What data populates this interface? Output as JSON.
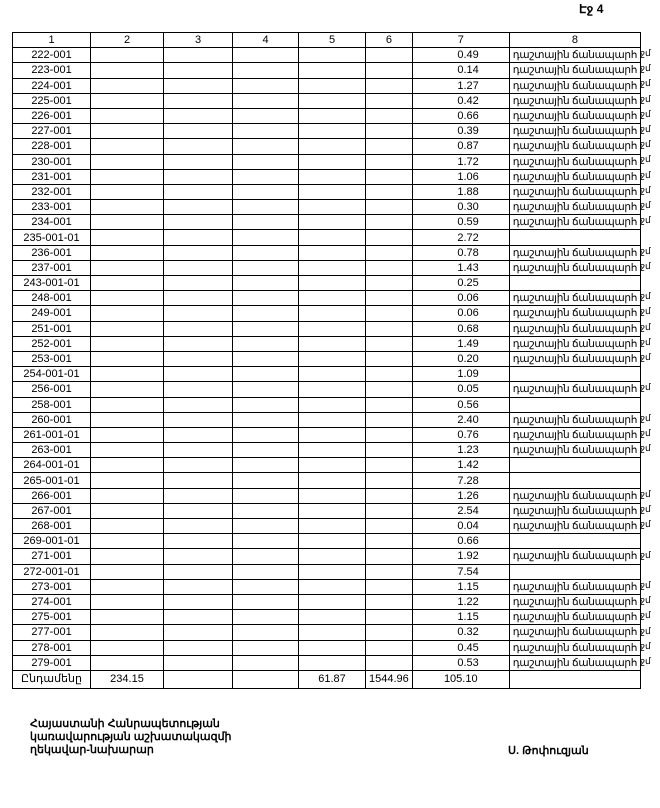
{
  "page_label": "Էջ 4",
  "headers": [
    "1",
    "2",
    "3",
    "4",
    "5",
    "6",
    "7",
    "8"
  ],
  "margin_mark": "ջմ",
  "rows": [
    [
      "222-001",
      "0.49",
      "դաշտային ճանապարհ"
    ],
    [
      "223-001",
      "0.14",
      "դաշտային ճանապարհ"
    ],
    [
      "224-001",
      "1.27",
      "դաշտային ճանապարհ"
    ],
    [
      "225-001",
      "0.42",
      "դաշտային ճանապարհ"
    ],
    [
      "226-001",
      "0.66",
      "դաշտային ճանապարհ"
    ],
    [
      "227-001",
      "0.39",
      "դաշտային ճանապարհ"
    ],
    [
      "228-001",
      "0.87",
      "դաշտային ճանապարհ"
    ],
    [
      "230-001",
      "1.72",
      "դաշտային ճանապարհ"
    ],
    [
      "231-001",
      "1.06",
      "դաշտային ճանապարհ"
    ],
    [
      "232-001",
      "1.88",
      "դաշտային ճանապարհ"
    ],
    [
      "233-001",
      "0.30",
      "դաշտային ճանապարհ"
    ],
    [
      "234-001",
      "0.59",
      "դաշտային ճանապարհ"
    ],
    [
      "235-001-01",
      "2.72",
      ""
    ],
    [
      "236-001",
      "0.78",
      "դաշտային ճանապարհ"
    ],
    [
      "237-001",
      "1.43",
      "դաշտային ճանապարհ"
    ],
    [
      "243-001-01",
      "0.25",
      ""
    ],
    [
      "248-001",
      "0.06",
      "դաշտային ճանապարհ"
    ],
    [
      "249-001",
      "0.06",
      "դաշտային ճանապարհ"
    ],
    [
      "251-001",
      "0.68",
      "դաշտային ճանապարհ"
    ],
    [
      "252-001",
      "1.49",
      "դաշտային ճանապարհ"
    ],
    [
      "253-001",
      "0.20",
      "դաշտային ճանապարհ"
    ],
    [
      "254-001-01",
      "1.09",
      ""
    ],
    [
      "256-001",
      "0.05",
      "դաշտային ճանապարհ"
    ],
    [
      "258-001",
      "0.56",
      ""
    ],
    [
      "260-001",
      "2.40",
      "դաշտային ճանապարհ"
    ],
    [
      "261-001-01",
      "0.76",
      "դաշտային ճանապարհ"
    ],
    [
      "263-001",
      "1.23",
      "դաշտային ճանապարհ"
    ],
    [
      "264-001-01",
      "1.42",
      ""
    ],
    [
      "265-001-01",
      "7.28",
      ""
    ],
    [
      "266-001",
      "1.26",
      "դաշտային ճանապարհ"
    ],
    [
      "267-001",
      "2.54",
      "դաշտային ճանապարհ"
    ],
    [
      "268-001",
      "0.04",
      "դաշտային ճանապարհ"
    ],
    [
      "269-001-01",
      "0.66",
      ""
    ],
    [
      "271-001",
      "1.92",
      "դաշտային ճանապարհ"
    ],
    [
      "272-001-01",
      "7.54",
      ""
    ],
    [
      "273-001",
      "1.15",
      "դաշտային ճանապարհ"
    ],
    [
      "274-001",
      "1.22",
      "դաշտային ճանապարհ"
    ],
    [
      "275-001",
      "1.15",
      "դաշտային ճանապարհ"
    ],
    [
      "277-001",
      "0.32",
      "դաշտային ճանապարհ"
    ],
    [
      "278-001",
      "0.45",
      "դաշտային ճանապարհ"
    ],
    [
      "279-001",
      "0.53",
      "դաշտային ճանապարհ"
    ]
  ],
  "total": {
    "label": "Ընդամենը",
    "c2": "234.15",
    "c3": "",
    "c4": "",
    "c5": "61.87",
    "c6": "1544.96",
    "c7": "105.10",
    "c8": ""
  },
  "signature": {
    "lines": [
      "Հայաստանի Հանրապետության",
      "կառավարության աշխատակազմի",
      "ղեկավար-նախարար"
    ],
    "name": "Ս. Թոփուզյան"
  }
}
